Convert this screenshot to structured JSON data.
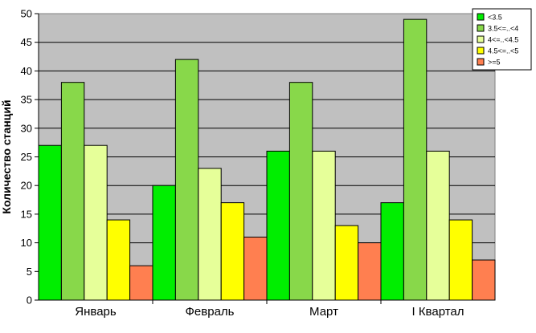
{
  "chart_data": {
    "type": "bar",
    "categories": [
      "Январь",
      "Февраль",
      "Март",
      "I Квартал"
    ],
    "series": [
      {
        "name": "<3.5",
        "values": [
          27,
          20,
          26,
          17
        ],
        "color": "#00ee00"
      },
      {
        "name": "3.5<=..<4",
        "values": [
          38,
          42,
          38,
          49
        ],
        "color": "#88d84a"
      },
      {
        "name": "4<=..<4.5",
        "values": [
          27,
          23,
          26,
          26
        ],
        "color": "#e6ff99"
      },
      {
        "name": "4.5<=..<5",
        "values": [
          14,
          17,
          13,
          14
        ],
        "color": "#ffff00"
      },
      {
        "name": ">=5",
        "values": [
          6,
          11,
          10,
          7
        ],
        "color": "#ff7f50"
      }
    ],
    "ylabel": "Количество станций",
    "xlabel": "",
    "title": "",
    "ylim": [
      0,
      50
    ],
    "yticks": [
      "0",
      "5",
      "10",
      "15",
      "20",
      "25",
      "30",
      "35",
      "40",
      "45",
      "50"
    ],
    "grid": true,
    "legend_position": "top-right",
    "plot_background": "#c0c0c0"
  }
}
